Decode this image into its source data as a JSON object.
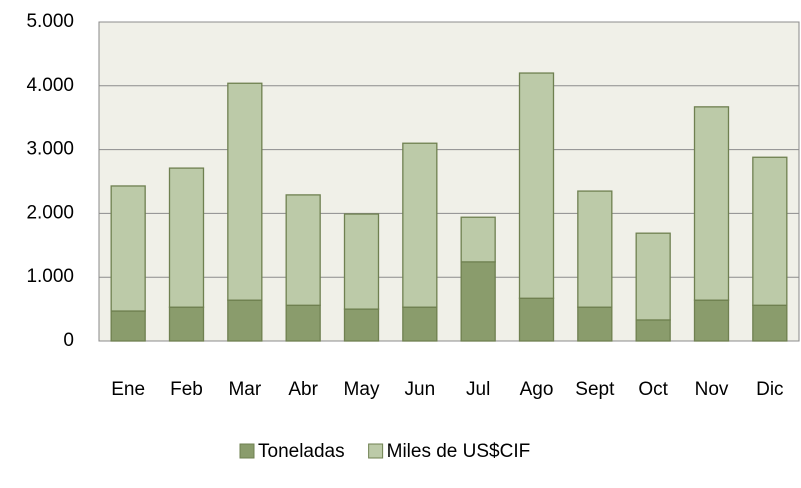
{
  "chart_data": {
    "type": "stacked_bar",
    "categories": [
      "Ene",
      "Feb",
      "Mar",
      "Abr",
      "May",
      "Jun",
      "Jul",
      "Ago",
      "Sept",
      "Oct",
      "Nov",
      "Dic"
    ],
    "series": [
      {
        "name": "Toneladas",
        "color": "#8a9c6c",
        "values": [
          470,
          530,
          640,
          560,
          500,
          530,
          1240,
          670,
          530,
          330,
          640,
          560
        ]
      },
      {
        "name": "Miles de US$CIF",
        "color": "#bccaa8",
        "values": [
          1960,
          2180,
          3400,
          1730,
          1490,
          2570,
          700,
          3530,
          1820,
          1360,
          3030,
          2320
        ]
      }
    ],
    "ylim": [
      0,
      5000
    ],
    "yticks": [
      0,
      {
        "value": 1000,
        "label": "1.000"
      },
      {
        "value": 2000,
        "label": "2.000"
      },
      {
        "value": 3000,
        "label": "3.000"
      },
      {
        "value": 4000,
        "label": "4.000"
      },
      {
        "value": 5000,
        "label": "5.000"
      }
    ],
    "grid": true,
    "legend": "bottom"
  }
}
